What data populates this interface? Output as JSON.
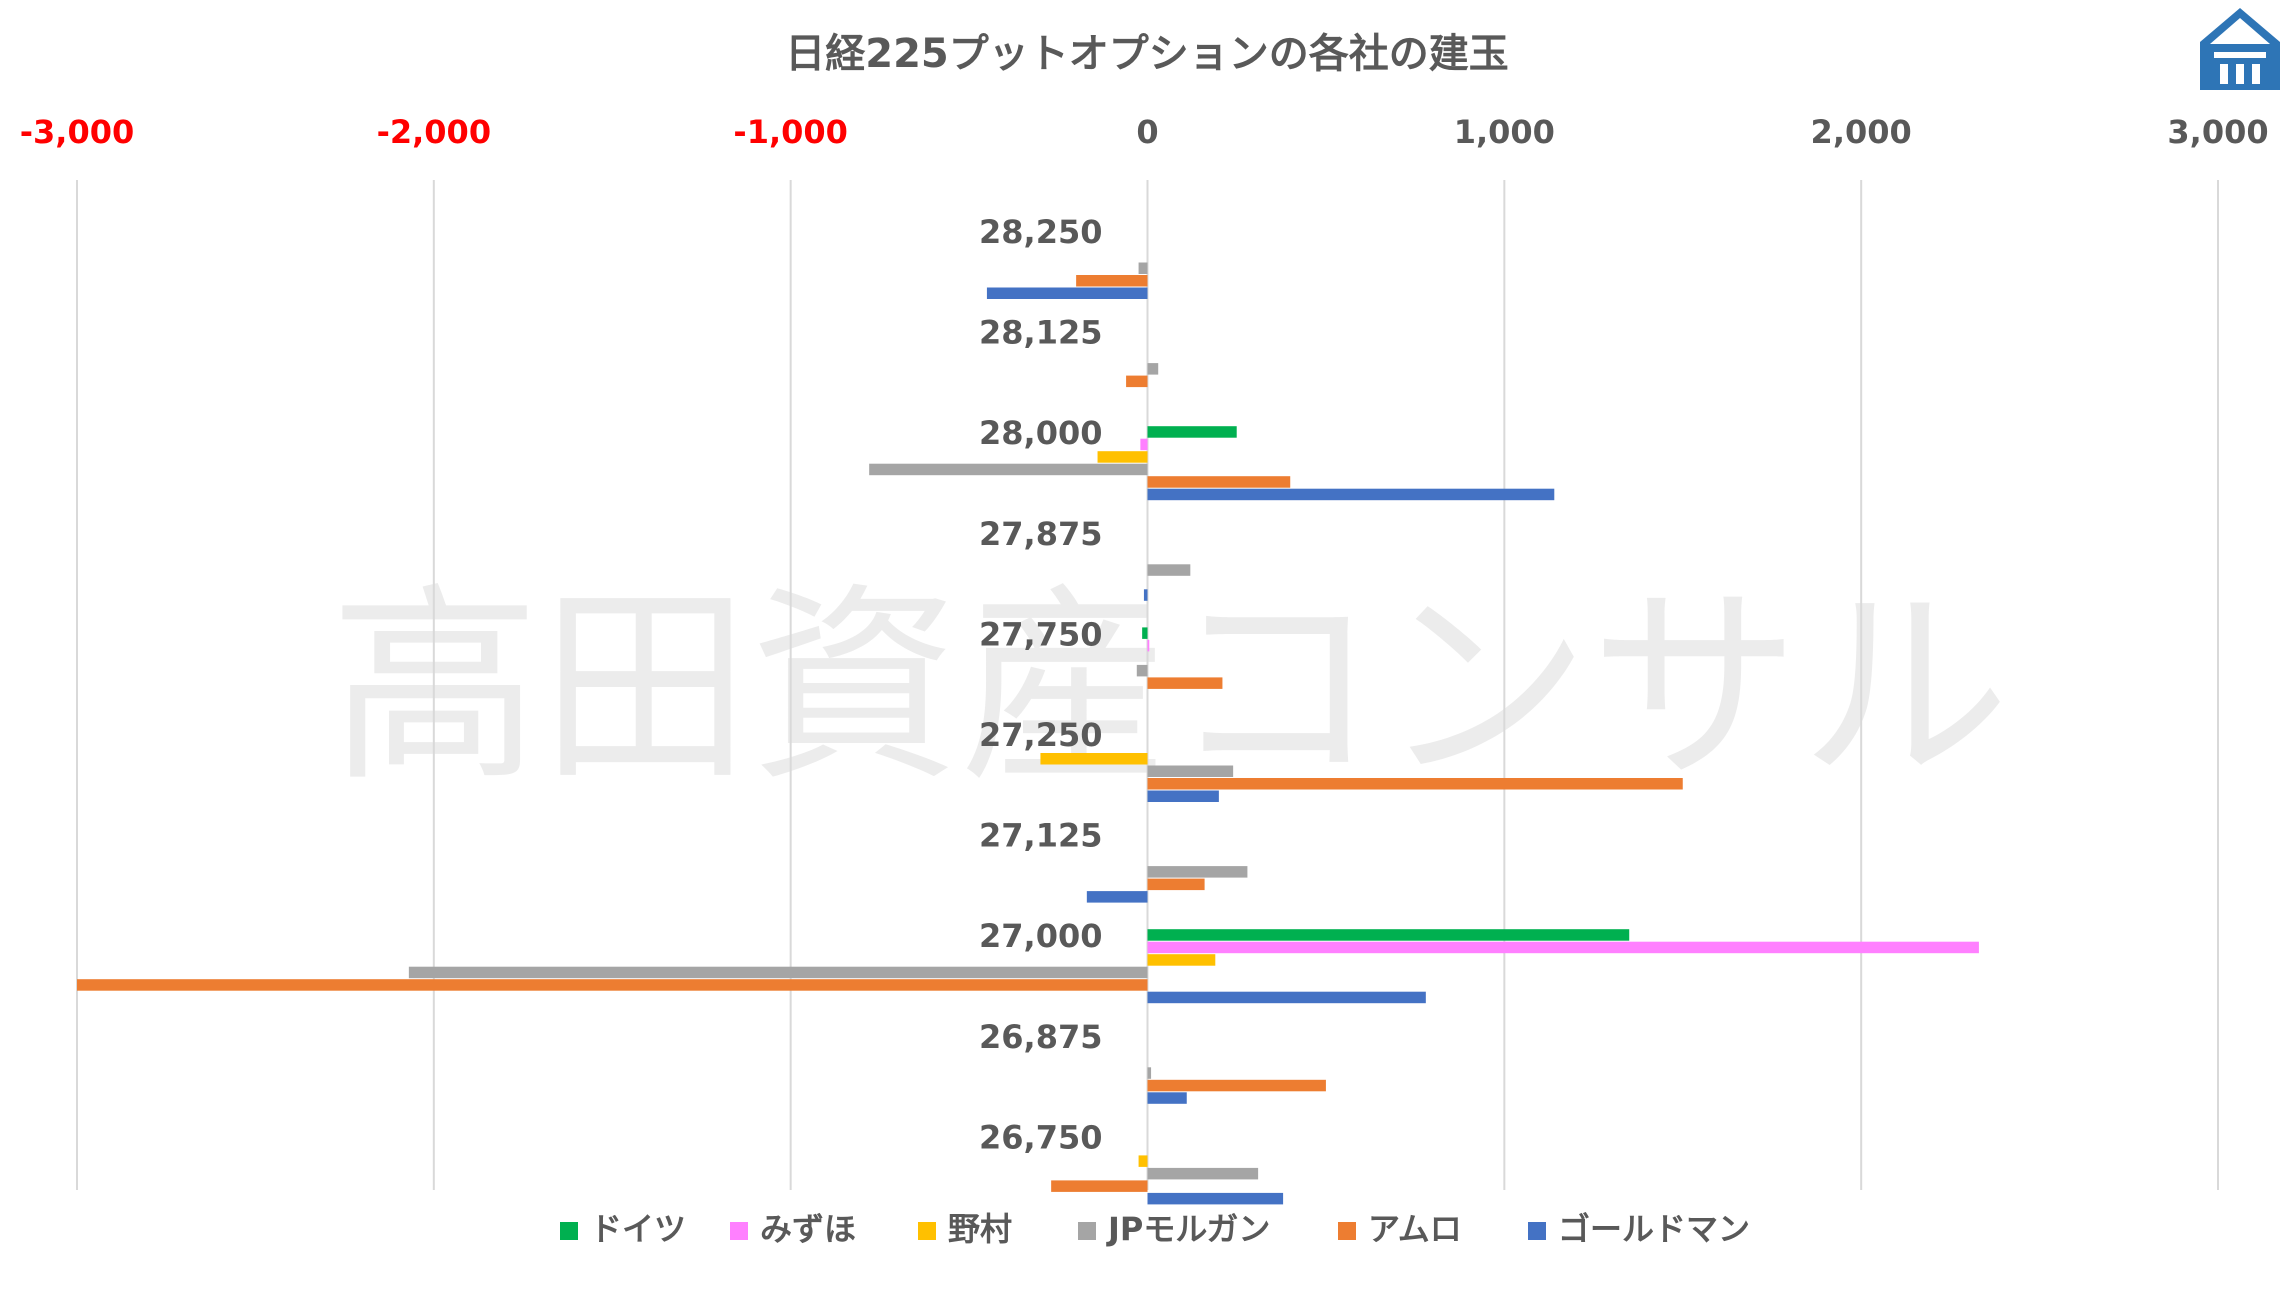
{
  "chart_data": {
    "type": "bar",
    "orientation": "horizontal",
    "title": "日経225プットオプションの各社の建玉",
    "watermark": "高田資産コンサル",
    "xlim": [
      -3000,
      3000
    ],
    "x_ticks": [
      -3000,
      -2000,
      -1000,
      0,
      1000,
      2000,
      3000
    ],
    "x_tick_labels": [
      "-3,000",
      "-2,000",
      "-1,000",
      "0",
      "1,000",
      "2,000",
      "3,000"
    ],
    "negative_tick_color": "#ff0000",
    "positive_tick_color": "#595959",
    "grid": "vertical",
    "legend_position": "bottom",
    "categories": [
      "28,250",
      "28,125",
      "28,000",
      "27,875",
      "27,750",
      "27,250",
      "27,125",
      "27,000",
      "26,875",
      "26,750"
    ],
    "series": [
      {
        "name": "ドイツ",
        "color": "#00b050",
        "values": [
          0,
          0,
          250,
          0,
          -15,
          0,
          0,
          1350,
          0,
          0
        ]
      },
      {
        "name": "みずほ",
        "color": "#ff80ff",
        "values": [
          0,
          0,
          -20,
          0,
          5,
          0,
          0,
          2330,
          0,
          0
        ]
      },
      {
        "name": "野村",
        "color": "#ffc000",
        "values": [
          0,
          0,
          -140,
          0,
          0,
          -300,
          0,
          190,
          0,
          -25
        ]
      },
      {
        "name": "JPモルガン",
        "color": "#a5a5a5",
        "values": [
          -25,
          30,
          -780,
          120,
          -30,
          240,
          280,
          -2070,
          10,
          310
        ]
      },
      {
        "name": "アムロ",
        "color": "#ed7d31",
        "values": [
          -200,
          -60,
          400,
          0,
          210,
          1500,
          160,
          -3000,
          500,
          -270
        ]
      },
      {
        "name": "ゴールドマン",
        "color": "#4472c4",
        "values": [
          -450,
          0,
          1140,
          -10,
          0,
          200,
          -170,
          780,
          110,
          380
        ]
      }
    ]
  },
  "logo": {
    "name": "takata-logo",
    "color": "#2e75b6"
  }
}
